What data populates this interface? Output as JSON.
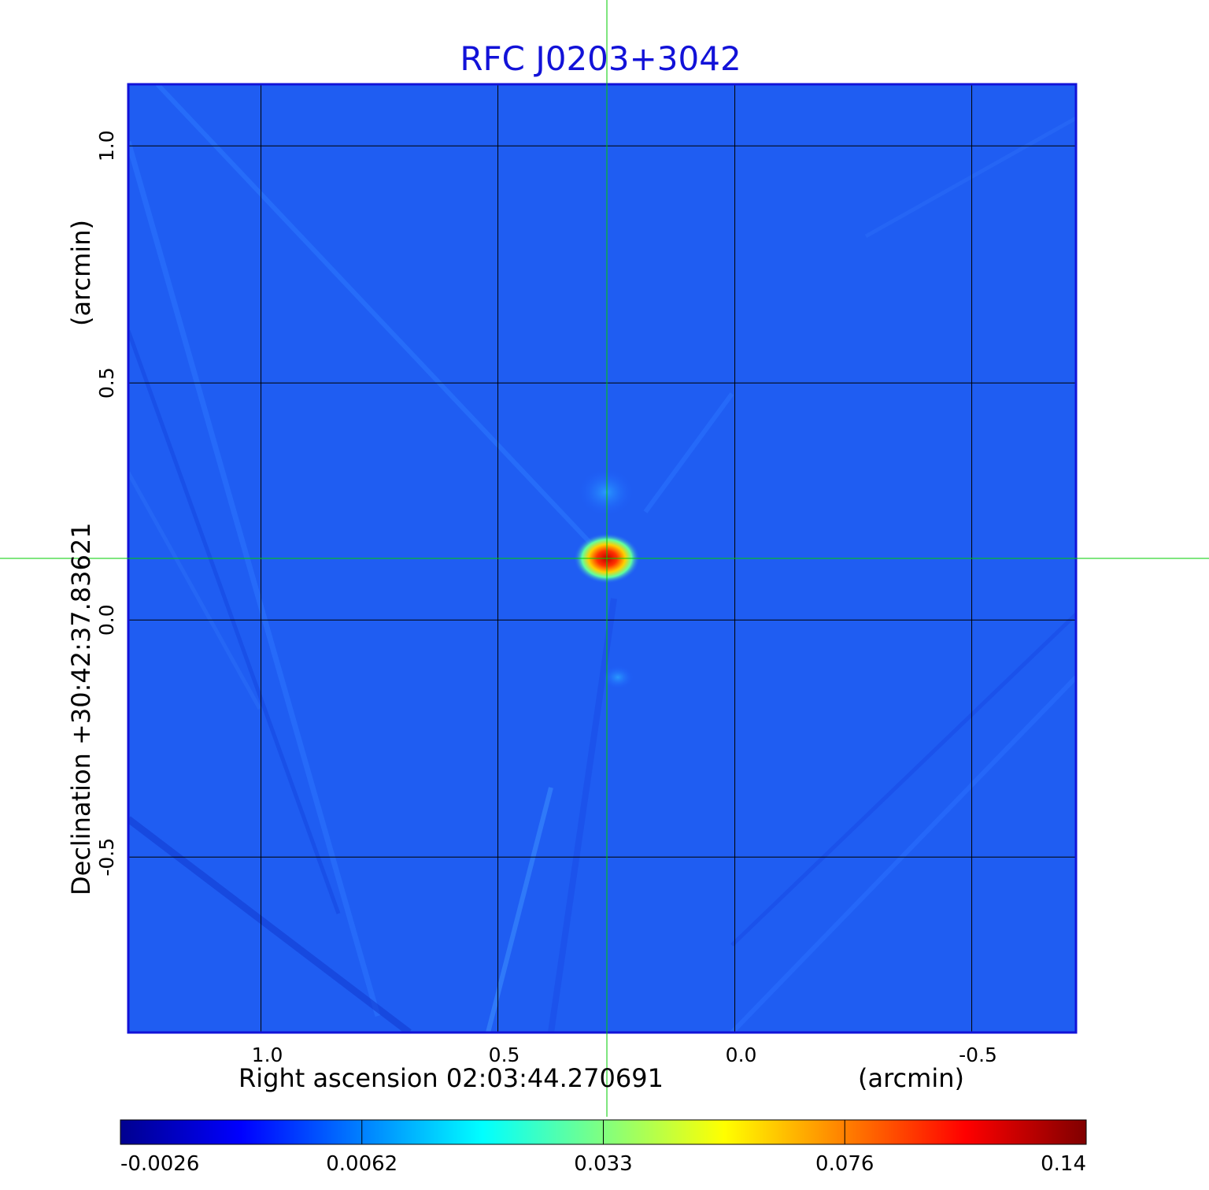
{
  "chart_data": {
    "type": "heatmap",
    "title": "RFC J0203+3042",
    "xlabel": "Right ascension  02:03:44.270691",
    "xunit": "(arcmin)",
    "ylabel": "Declination  +30:42:37.83621",
    "yunit": "(arcmin)",
    "x_ticks": [
      1.0,
      0.5,
      0.0,
      -0.5
    ],
    "x_tick_labels": [
      "1.0",
      "0.5",
      "0.0",
      "-0.5"
    ],
    "y_ticks": [
      1.0,
      0.5,
      0.0,
      -0.5
    ],
    "y_tick_labels": [
      "1.0",
      "0.5",
      "0.0",
      "-0.5"
    ],
    "xlim": [
      1.28,
      -0.72
    ],
    "ylim": [
      -0.87,
      1.13
    ],
    "grid": true,
    "crosshair": {
      "x": 0.27,
      "y": 0.13,
      "color": "#00cc00"
    },
    "colorbar": {
      "position": "bottom",
      "tick_labels": [
        "-0.0026",
        "0.0062",
        "0.033",
        "0.076",
        "0.14"
      ],
      "colors": [
        "#00008f",
        "#0000ff",
        "#0080ff",
        "#00ffff",
        "#80ff80",
        "#ffff00",
        "#ff8000",
        "#ff0000",
        "#800000"
      ]
    },
    "peak": {
      "x": 0.27,
      "y": 0.13,
      "value": 0.14
    },
    "background_level": 0.0
  }
}
